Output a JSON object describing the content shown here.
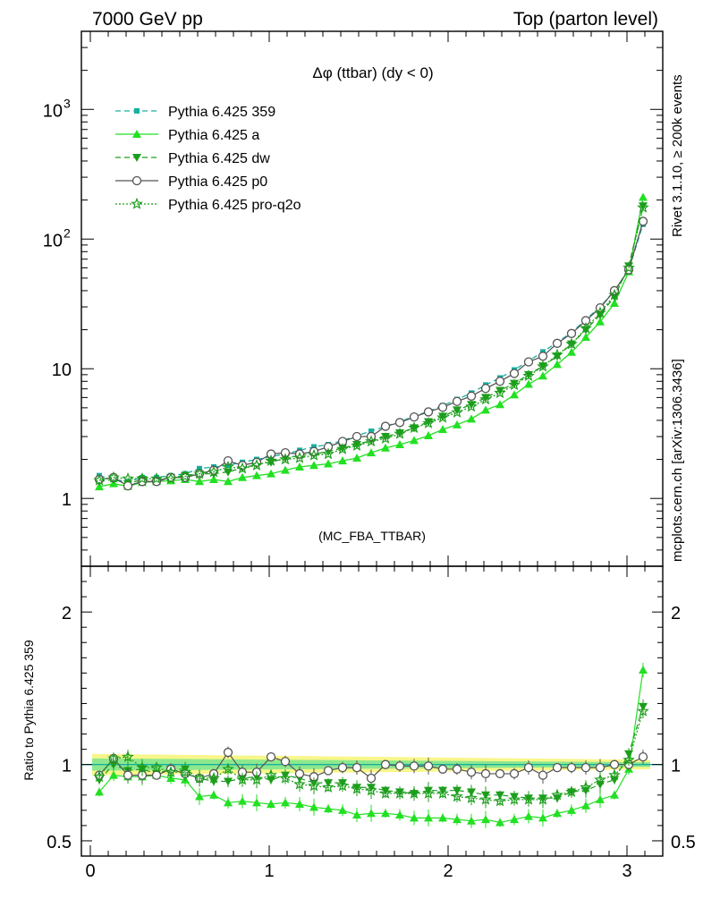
{
  "header": {
    "left": "7000 GeV pp",
    "right": "Top (parton level)"
  },
  "side": {
    "top": "Rivet 3.1.10, ≥ 200k events",
    "bottom": "mcplots.cern.ch [arXiv:1306.3436]"
  },
  "chart_data": {
    "type": "line",
    "title": "Δφ (ttbar) (dy < 0)",
    "watermark": "(MC_FBA_TTBAR)",
    "xlabel": "",
    "ylabel_main": "",
    "ylabel_ratio": "Ratio to Pythia 6.425 359",
    "xlim": [
      -0.05,
      3.2
    ],
    "ylim_main": [
      0.3,
      4000
    ],
    "ylim_ratio": [
      0.4,
      2.3
    ],
    "yscale_main": "log",
    "x_ticks": [
      "0",
      "1",
      "2",
      "3"
    ],
    "y_ticks_main": [
      {
        "value": 1,
        "base": "1",
        "exp": ""
      },
      {
        "value": 10,
        "base": "10",
        "exp": ""
      },
      {
        "value": 100,
        "base": "10",
        "exp": "2"
      },
      {
        "value": 1000,
        "base": "10",
        "exp": "3"
      }
    ],
    "y_ticks_ratio": [
      "0.5",
      "1",
      "2"
    ],
    "legend_position": "top-left",
    "x": [
      0.05,
      0.13,
      0.21,
      0.29,
      0.37,
      0.45,
      0.53,
      0.61,
      0.69,
      0.77,
      0.85,
      0.93,
      1.01,
      1.09,
      1.17,
      1.25,
      1.33,
      1.41,
      1.49,
      1.57,
      1.65,
      1.73,
      1.81,
      1.89,
      1.97,
      2.05,
      2.13,
      2.21,
      2.29,
      2.37,
      2.45,
      2.53,
      2.61,
      2.69,
      2.77,
      2.85,
      2.93,
      3.01,
      3.09
    ],
    "series": [
      {
        "name": "Pythia 6.425 359",
        "color": "#17b0a0",
        "dash": "6,4",
        "marker": "square",
        "values": [
          1.5,
          1.4,
          1.35,
          1.45,
          1.45,
          1.5,
          1.55,
          1.7,
          1.75,
          1.8,
          1.9,
          2.0,
          2.1,
          2.2,
          2.35,
          2.5,
          2.6,
          2.8,
          3.05,
          3.3,
          3.6,
          3.9,
          4.3,
          4.7,
          5.2,
          5.8,
          6.5,
          7.5,
          8.5,
          9.8,
          11.5,
          13.5,
          16,
          19,
          24,
          30,
          40,
          58,
          130
        ],
        "band_inner": 0.025,
        "band_outer": 0.07
      },
      {
        "name": "Pythia 6.425 a",
        "color": "#22e022",
        "dash": "",
        "marker": "triangle-up",
        "values": [
          1.23,
          1.3,
          1.24,
          1.33,
          1.35,
          1.37,
          1.4,
          1.35,
          1.4,
          1.35,
          1.45,
          1.5,
          1.55,
          1.65,
          1.75,
          1.8,
          1.85,
          1.95,
          2.05,
          2.25,
          2.45,
          2.6,
          2.8,
          3.05,
          3.4,
          3.7,
          4.1,
          4.8,
          5.3,
          6.3,
          7.6,
          8.8,
          10.8,
          13.4,
          17.5,
          23,
          32,
          56,
          210
        ]
      },
      {
        "name": "Pythia 6.425 dw",
        "color": "#1c9e1c",
        "dash": "6,4",
        "marker": "triangle-down",
        "values": [
          1.35,
          1.4,
          1.3,
          1.4,
          1.37,
          1.45,
          1.5,
          1.55,
          1.55,
          1.6,
          1.72,
          1.83,
          1.9,
          2.05,
          2.15,
          2.2,
          2.3,
          2.45,
          2.6,
          2.8,
          3.0,
          3.2,
          3.5,
          3.9,
          4.3,
          4.8,
          5.3,
          6.0,
          6.8,
          7.7,
          9.0,
          10.5,
          12.5,
          15.5,
          20,
          26,
          36,
          62,
          180
        ]
      },
      {
        "name": "Pythia 6.425 p0",
        "color": "#555555",
        "dash": "",
        "marker": "circle-open",
        "values": [
          1.4,
          1.45,
          1.25,
          1.35,
          1.35,
          1.45,
          1.45,
          1.55,
          1.65,
          1.95,
          1.8,
          1.9,
          2.2,
          2.25,
          2.2,
          2.3,
          2.5,
          2.75,
          3.0,
          3.0,
          3.6,
          3.85,
          4.25,
          4.65,
          5.05,
          5.6,
          6.15,
          7.05,
          8.0,
          9.2,
          11.3,
          12.5,
          15.7,
          18.7,
          23.5,
          29.5,
          40,
          58,
          137
        ]
      },
      {
        "name": "Pythia 6.425 pro-q2o",
        "color": "#1c9e1c",
        "dash": "2,2",
        "marker": "star",
        "values": [
          1.38,
          1.45,
          1.42,
          1.42,
          1.42,
          1.42,
          1.48,
          1.55,
          1.6,
          1.75,
          1.7,
          1.8,
          1.95,
          2.0,
          2.05,
          2.15,
          2.2,
          2.4,
          2.55,
          2.75,
          2.9,
          3.15,
          3.5,
          3.8,
          4.2,
          4.6,
          5.1,
          5.8,
          6.5,
          7.5,
          8.8,
          10.4,
          12.8,
          15.5,
          20.5,
          27,
          37,
          60,
          175
        ]
      }
    ],
    "ratio_series": [
      {
        "name": "Pythia 6.425 a",
        "values": [
          0.82,
          0.93,
          0.92,
          0.92,
          0.93,
          0.91,
          0.9,
          0.79,
          0.8,
          0.75,
          0.76,
          0.75,
          0.74,
          0.75,
          0.74,
          0.72,
          0.71,
          0.7,
          0.67,
          0.68,
          0.68,
          0.67,
          0.65,
          0.65,
          0.65,
          0.64,
          0.63,
          0.64,
          0.62,
          0.64,
          0.66,
          0.65,
          0.68,
          0.7,
          0.73,
          0.77,
          0.8,
          0.97,
          1.62
        ]
      },
      {
        "name": "Pythia 6.425 dw",
        "values": [
          0.9,
          1.0,
          0.96,
          0.97,
          0.94,
          0.97,
          0.97,
          0.91,
          0.89,
          0.89,
          0.91,
          0.92,
          0.9,
          0.93,
          0.91,
          0.88,
          0.88,
          0.88,
          0.85,
          0.85,
          0.83,
          0.82,
          0.81,
          0.83,
          0.83,
          0.83,
          0.82,
          0.8,
          0.8,
          0.79,
          0.78,
          0.78,
          0.78,
          0.82,
          0.83,
          0.87,
          0.9,
          1.07,
          1.38
        ]
      },
      {
        "name": "Pythia 6.425 p0",
        "values": [
          0.93,
          1.04,
          0.93,
          0.93,
          0.93,
          0.97,
          0.94,
          0.91,
          0.94,
          1.08,
          0.95,
          0.95,
          1.05,
          1.02,
          0.94,
          0.92,
          0.96,
          0.98,
          0.98,
          0.91,
          1.0,
          0.99,
          0.99,
          0.99,
          0.97,
          0.97,
          0.95,
          0.94,
          0.94,
          0.94,
          0.98,
          0.93,
          0.98,
          0.98,
          0.98,
          0.98,
          1.0,
          1.0,
          1.05
        ]
      },
      {
        "name": "Pythia 6.425 pro-q2o",
        "values": [
          0.92,
          1.04,
          1.05,
          0.98,
          0.98,
          0.95,
          0.95,
          0.91,
          0.91,
          0.97,
          0.9,
          0.9,
          0.93,
          0.91,
          0.87,
          0.86,
          0.85,
          0.86,
          0.84,
          0.83,
          0.81,
          0.81,
          0.81,
          0.81,
          0.81,
          0.79,
          0.78,
          0.77,
          0.76,
          0.77,
          0.77,
          0.77,
          0.8,
          0.82,
          0.85,
          0.9,
          0.93,
          1.03,
          1.35
        ]
      }
    ]
  }
}
